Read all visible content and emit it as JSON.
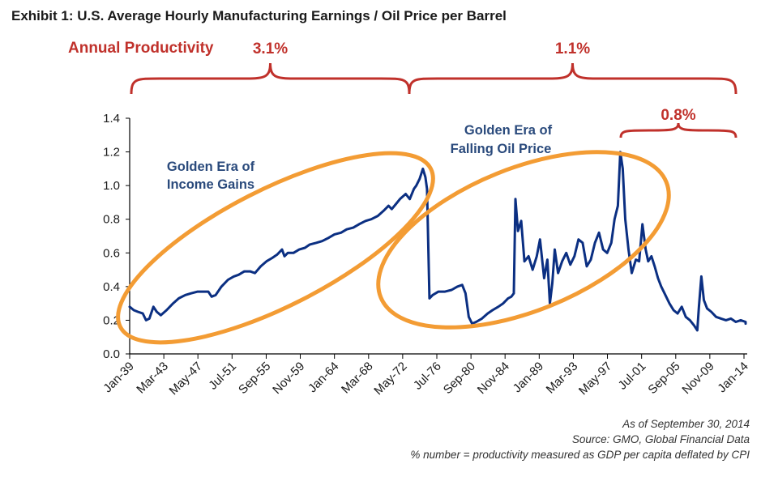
{
  "title": "Exhibit 1: U.S. Average Hourly Manufacturing Earnings / Oil Price per Barrel",
  "footnotes": [
    "As of September 30, 2014",
    "Source: GMO, Global Financial Data",
    "% number = productivity measured as GDP per capita deflated by CPI"
  ],
  "colors": {
    "line": "#0b2f82",
    "ellipse": "#f39c34",
    "annotation_red": "#c0312b",
    "annotation_blue": "#2a4a7c",
    "axis": "#000000"
  },
  "chart_data": {
    "type": "line",
    "title": "Exhibit 1: U.S. Average Hourly Manufacturing Earnings / Oil Price per Barrel",
    "xlabel": "",
    "ylabel": "",
    "ylim": [
      0.0,
      1.4
    ],
    "xlim": [
      1939.0,
      2014.5
    ],
    "grid": false,
    "legend": "none",
    "yticks": [
      "0.0",
      "0.2",
      "0.4",
      "0.6",
      "0.8",
      "1.0",
      "1.2",
      "1.4"
    ],
    "ytick_values": [
      0.0,
      0.2,
      0.4,
      0.6,
      0.8,
      1.0,
      1.2,
      1.4
    ],
    "xticks": [
      "Jan-39",
      "Mar-43",
      "May-47",
      "Jul-51",
      "Sep-55",
      "Nov-59",
      "Jan-64",
      "Mar-68",
      "May-72",
      "Jul-76",
      "Sep-80",
      "Nov-84",
      "Jan-89",
      "Mar-93",
      "May-97",
      "Jul-01",
      "Sep-05",
      "Nov-09",
      "Jan-14"
    ],
    "xtick_values": [
      1939.0,
      1943.17,
      1947.33,
      1951.5,
      1955.67,
      1959.83,
      1964.0,
      1968.17,
      1972.33,
      1976.5,
      1980.67,
      1984.83,
      1989.0,
      1993.17,
      1997.33,
      2001.5,
      2005.67,
      2009.83,
      2014.0
    ],
    "series": [
      {
        "name": "Avg Hourly Manufacturing Earnings / Oil Price per Barrel",
        "x": [
          1939.0,
          1939.5,
          1940.0,
          1940.6,
          1941.0,
          1941.4,
          1941.9,
          1942.3,
          1942.8,
          1943.5,
          1944.3,
          1945.0,
          1945.8,
          1946.5,
          1947.3,
          1948.0,
          1948.6,
          1949.0,
          1949.5,
          1950.2,
          1951.0,
          1951.7,
          1952.3,
          1953.0,
          1953.7,
          1954.3,
          1955.0,
          1955.7,
          1956.4,
          1957.0,
          1957.6,
          1957.9,
          1958.3,
          1959.0,
          1959.7,
          1960.4,
          1961.0,
          1961.8,
          1962.5,
          1963.3,
          1964.0,
          1964.8,
          1965.5,
          1966.3,
          1967.0,
          1967.8,
          1968.5,
          1969.3,
          1970.0,
          1970.6,
          1971.0,
          1971.5,
          1972.0,
          1972.7,
          1973.2,
          1973.7,
          1974.0,
          1974.4,
          1974.8,
          1975.1,
          1975.3,
          1975.6,
          1976.0,
          1976.7,
          1977.5,
          1978.3,
          1979.0,
          1979.6,
          1980.0,
          1980.4,
          1980.8,
          1981.3,
          1982.0,
          1982.7,
          1983.3,
          1984.0,
          1984.6,
          1985.2,
          1985.6,
          1985.9,
          1986.1,
          1986.4,
          1986.8,
          1987.2,
          1987.7,
          1988.2,
          1988.7,
          1989.1,
          1989.6,
          1990.0,
          1990.3,
          1990.6,
          1990.9,
          1991.3,
          1991.8,
          1992.3,
          1992.8,
          1993.3,
          1993.8,
          1994.3,
          1994.8,
          1995.3,
          1995.8,
          1996.3,
          1996.8,
          1997.3,
          1997.8,
          1998.2,
          1998.6,
          1998.9,
          1999.2,
          1999.5,
          1999.9,
          2000.3,
          2000.8,
          2001.2,
          2001.6,
          2002.0,
          2002.3,
          2002.7,
          2003.1,
          2003.5,
          2003.9,
          2004.4,
          2004.9,
          2005.4,
          2005.9,
          2006.4,
          2006.9,
          2007.4,
          2007.9,
          2008.3,
          2008.5,
          2008.8,
          2009.1,
          2009.5,
          2010.0,
          2010.6,
          2011.2,
          2011.8,
          2012.4,
          2013.0,
          2013.6,
          2014.2,
          2014.6
        ],
        "values": [
          0.28,
          0.26,
          0.25,
          0.24,
          0.2,
          0.21,
          0.28,
          0.25,
          0.23,
          0.26,
          0.3,
          0.33,
          0.35,
          0.36,
          0.37,
          0.37,
          0.37,
          0.34,
          0.35,
          0.4,
          0.44,
          0.46,
          0.47,
          0.49,
          0.49,
          0.48,
          0.52,
          0.55,
          0.57,
          0.59,
          0.62,
          0.58,
          0.6,
          0.6,
          0.62,
          0.63,
          0.65,
          0.66,
          0.67,
          0.69,
          0.71,
          0.72,
          0.74,
          0.75,
          0.77,
          0.79,
          0.8,
          0.82,
          0.85,
          0.88,
          0.86,
          0.89,
          0.92,
          0.95,
          0.92,
          0.98,
          1.0,
          1.04,
          1.1,
          1.05,
          0.98,
          0.33,
          0.35,
          0.37,
          0.37,
          0.38,
          0.4,
          0.41,
          0.36,
          0.22,
          0.18,
          0.19,
          0.21,
          0.24,
          0.26,
          0.28,
          0.3,
          0.33,
          0.34,
          0.36,
          0.92,
          0.73,
          0.79,
          0.55,
          0.58,
          0.5,
          0.58,
          0.68,
          0.45,
          0.56,
          0.3,
          0.42,
          0.62,
          0.48,
          0.55,
          0.6,
          0.53,
          0.58,
          0.68,
          0.66,
          0.52,
          0.56,
          0.66,
          0.72,
          0.62,
          0.6,
          0.66,
          0.8,
          0.88,
          1.2,
          1.1,
          0.8,
          0.62,
          0.48,
          0.56,
          0.55,
          0.77,
          0.62,
          0.55,
          0.58,
          0.52,
          0.45,
          0.4,
          0.35,
          0.3,
          0.26,
          0.24,
          0.28,
          0.22,
          0.2,
          0.17,
          0.14,
          0.28,
          0.46,
          0.32,
          0.27,
          0.25,
          0.22,
          0.21,
          0.2,
          0.21,
          0.19,
          0.2,
          0.19,
          0.18
        ]
      }
    ],
    "annotations": {
      "productivity_label": "Annual Productivity",
      "braces": [
        {
          "label": "3.1%",
          "from": "Jan-39",
          "to": "1974",
          "level": "top"
        },
        {
          "label": "1.1%",
          "from": "1974",
          "to": "2014",
          "level": "top"
        },
        {
          "label": "0.8%",
          "from": "2000",
          "to": "2014",
          "level": "inner"
        }
      ],
      "ellipse_labels": [
        {
          "label_lines": [
            "Golden Era of",
            "Income Gains"
          ]
        },
        {
          "label_lines": [
            "Golden Era of",
            "Falling Oil Price"
          ]
        }
      ]
    }
  }
}
